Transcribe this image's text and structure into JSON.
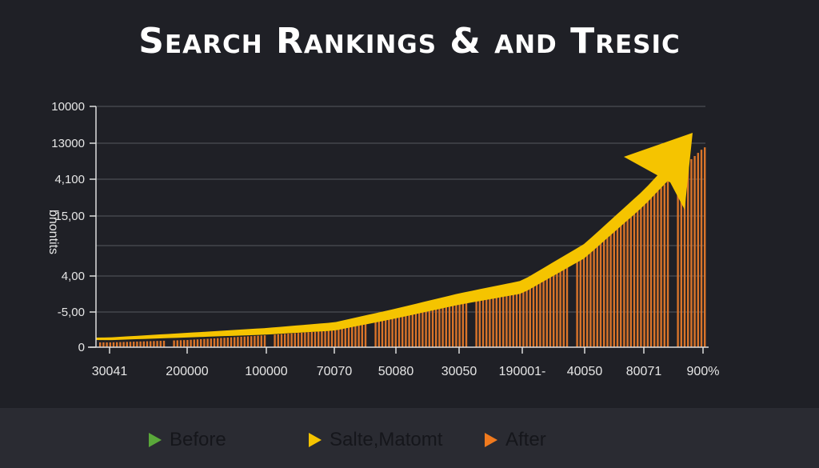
{
  "chart_data": {
    "type": "bar",
    "title": "Search Rankings & and Tresic",
    "ylabel": "bnontits",
    "xlabel": "",
    "categories": [
      "30041",
      "200000",
      "100000",
      "70070",
      "50080",
      "30050",
      "190001-",
      "40050",
      "80071",
      "900%"
    ],
    "y_tick_labels": [
      "0",
      "-5,00",
      "4,00",
      "",
      "15,00",
      "4,100",
      "13000",
      "10000"
    ],
    "ylim": [
      0,
      100
    ],
    "grid": true,
    "series": [
      {
        "values": [
          2,
          3,
          5,
          7,
          13,
          20,
          27,
          40,
          60,
          83
        ],
        "color": "#d9742a",
        "style": "striped-bars"
      },
      {
        "values": [
          3.5,
          5,
          6.6,
          8.6,
          14,
          20,
          25,
          40,
          62,
          88
        ],
        "color": "#f5c400",
        "style": "arrow"
      }
    ],
    "legend": {
      "placement": "bottom",
      "entries": [
        {
          "label": "Before",
          "color": "#5aa83a"
        },
        {
          "label": "Salte,Matomt",
          "color": "#f5c400"
        },
        {
          "label": "After",
          "color": "#f07a1e"
        }
      ]
    }
  }
}
